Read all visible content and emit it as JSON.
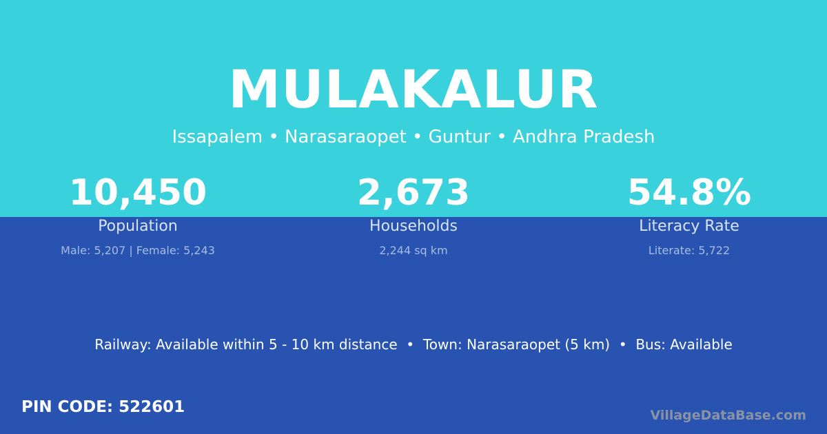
{
  "colors": {
    "top_bg": "#38D1DC",
    "bottom_bg": "#2853B0",
    "brand_text": "#8a93a6"
  },
  "village": {
    "name": "MULAKALUR",
    "location": "Issapalem • Narasaraopet • Guntur • Andhra Pradesh"
  },
  "stats": [
    {
      "value": "10,450",
      "label": "Population",
      "detail": "Male: 5,207 | Female: 5,243"
    },
    {
      "value": "2,673",
      "label": "Households",
      "detail": "2,244 sq km"
    },
    {
      "value": "54.8%",
      "label": "Literacy Rate",
      "detail": "Literate: 5,722"
    }
  ],
  "connectivity": "Railway: Available within 5 - 10 km distance  •  Town: Narasaraopet (5 km)  •  Bus: Available",
  "pin_code": "PIN CODE: 522601",
  "brand": "VillageDataBase.com"
}
